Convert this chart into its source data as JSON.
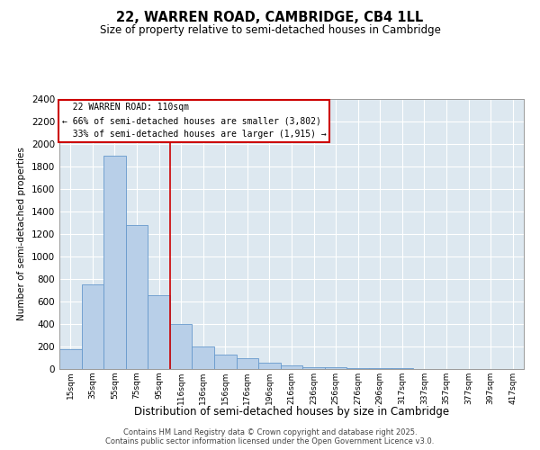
{
  "title": "22, WARREN ROAD, CAMBRIDGE, CB4 1LL",
  "subtitle": "Size of property relative to semi-detached houses in Cambridge",
  "xlabel": "Distribution of semi-detached houses by size in Cambridge",
  "ylabel": "Number of semi-detached properties",
  "bin_labels": [
    "15sqm",
    "35sqm",
    "55sqm",
    "75sqm",
    "95sqm",
    "116sqm",
    "136sqm",
    "156sqm",
    "176sqm",
    "196sqm",
    "216sqm",
    "236sqm",
    "256sqm",
    "276sqm",
    "296sqm",
    "317sqm",
    "337sqm",
    "357sqm",
    "377sqm",
    "397sqm",
    "417sqm"
  ],
  "bar_heights": [
    175,
    750,
    1900,
    1280,
    660,
    400,
    200,
    130,
    100,
    60,
    30,
    20,
    15,
    10,
    5,
    5,
    3,
    2,
    1,
    1,
    0
  ],
  "bar_color": "#b8cfe8",
  "bar_edge_color": "#6699cc",
  "marker_label": "22 WARREN ROAD: 110sqm",
  "smaller_pct": "66%",
  "smaller_n": "3,802",
  "larger_pct": "33%",
  "larger_n": "1,915",
  "vline_color": "#cc0000",
  "bg_color": "#dde8f0",
  "grid_color": "#ffffff",
  "ylim": [
    0,
    2400
  ],
  "yticks": [
    0,
    200,
    400,
    600,
    800,
    1000,
    1200,
    1400,
    1600,
    1800,
    2000,
    2200,
    2400
  ],
  "footer1": "Contains HM Land Registry data © Crown copyright and database right 2025.",
  "footer2": "Contains public sector information licensed under the Open Government Licence v3.0."
}
